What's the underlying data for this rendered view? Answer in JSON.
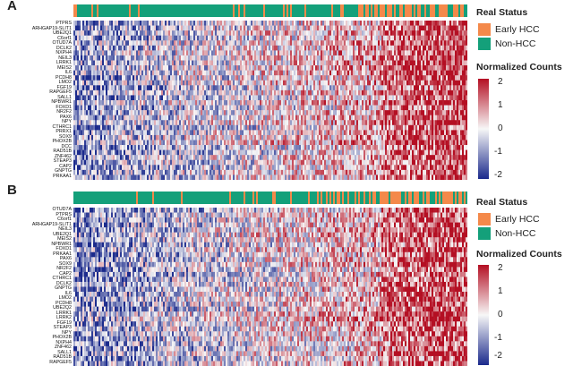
{
  "colors": {
    "early_hcc": "#f4894a",
    "non_hcc": "#14a07a",
    "high": "#b40f23",
    "mid": "#f7f7f7",
    "low": "#1b2a8c"
  },
  "legend": {
    "status_title": "Real Status",
    "status_items": [
      "Early HCC",
      "Non-HCC"
    ],
    "counts_title": "Normalized Counts",
    "ticks": [
      "2",
      "1",
      "0",
      "-1",
      "-2"
    ]
  },
  "chart_data": [
    {
      "type": "heatmap",
      "panel": "A",
      "genes": [
        "PTPRS",
        "ARHGAP19-SLIT1",
        "UBE2Q1",
        "C6orf1",
        "OTUD7A",
        "DCLK2",
        "NXPH4",
        "NEIL3",
        "LRRK1",
        "MEIS2",
        "IL6",
        "PCDH8",
        "LMO2",
        "FGF19",
        "RAPGEF5",
        "SALL1",
        "NPBWR1",
        "FOXD1",
        "NR2F2",
        "PAX6",
        "NPY",
        "CTHRC1",
        "PRRX1",
        "SOX9",
        "PHOX2B",
        "DCC",
        "RAD51B",
        "ZNF462",
        "STEAP3",
        "CAP2",
        "GNPTG",
        "PRKAA1"
      ],
      "status_mix": "Early HCC columns concentrated on the right",
      "value_range": [
        -2,
        2
      ]
    },
    {
      "type": "heatmap",
      "panel": "B",
      "genes": [
        "OTUD7A",
        "PTPRS",
        "C6orf1",
        "ARHGAP19-SLIT1",
        "NEIL3",
        "UBE2Q1",
        "MEIS2",
        "NPBWR1",
        "FOXD1",
        "PRKAA1",
        "PAX6",
        "SOX9",
        "NR2F2",
        "CAP2",
        "CTHRC1",
        "DCLK2",
        "GNPTG",
        "IL6",
        "LMO2",
        "PCDH8",
        "UBE2Q2",
        "LRRK1",
        "LRRK2",
        "FGF19",
        "STEAP3",
        "NPY",
        "PHOX2B",
        "NXPH4",
        "ZNF462",
        "SALL1",
        "RAD51B",
        "RAPGEF5"
      ],
      "status_mix": "Early HCC columns concentrated on the right",
      "value_range": [
        -2,
        2
      ]
    }
  ]
}
